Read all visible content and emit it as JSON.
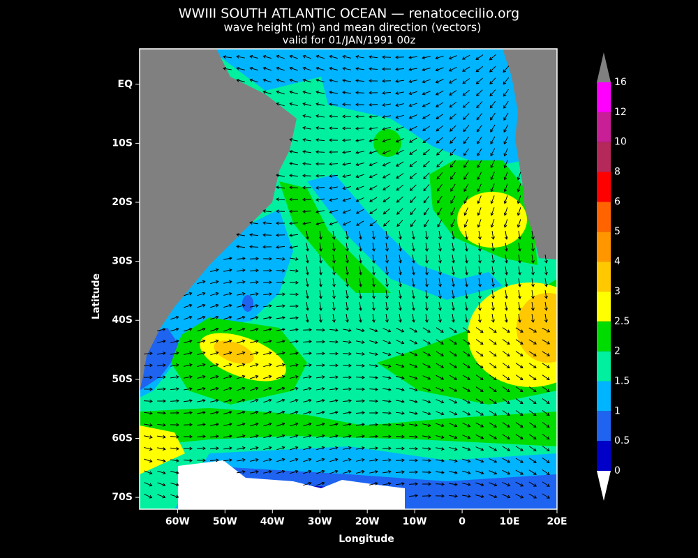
{
  "header": {
    "title": "WWIII SOUTH ATLANTIC OCEAN — renatocecilio.org",
    "subtitle": "wave height (m) and mean direction (vectors)",
    "valid": "valid for 01/JAN/1991 00z"
  },
  "map": {
    "xlabel": "Longitude",
    "ylabel": "Latitude",
    "xlim": [
      -68,
      20
    ],
    "ylim": [
      -72,
      6
    ],
    "xticks": [
      {
        "value": -60,
        "label": "60W"
      },
      {
        "value": -50,
        "label": "50W"
      },
      {
        "value": -40,
        "label": "40W"
      },
      {
        "value": -30,
        "label": "30W"
      },
      {
        "value": -20,
        "label": "20W"
      },
      {
        "value": -10,
        "label": "10W"
      },
      0,
      {
        "value": 10,
        "label": "10E"
      },
      {
        "value": 20,
        "label": "20E"
      }
    ],
    "yticks": [
      {
        "value": 0,
        "label": "EQ"
      },
      {
        "value": -10,
        "label": "10S"
      },
      {
        "value": -20,
        "label": "20S"
      },
      {
        "value": -30,
        "label": "30S"
      },
      {
        "value": -40,
        "label": "40S"
      },
      {
        "value": -50,
        "label": "50S"
      },
      {
        "value": -60,
        "label": "60S"
      },
      {
        "value": -70,
        "label": "70S"
      }
    ]
  },
  "colorbar": {
    "levels": [
      0,
      0.5,
      1,
      1.5,
      2,
      2.5,
      3,
      4,
      5,
      6,
      8,
      10,
      12,
      16
    ],
    "colors": [
      "#0000c8",
      "#1e64f0",
      "#00b4ff",
      "#00f0a0",
      "#00dc00",
      "#ffff00",
      "#ffc800",
      "#ff9600",
      "#ff6400",
      "#ff0000",
      "#b4285a",
      "#c81e96",
      "#ff00ff"
    ]
  }
}
